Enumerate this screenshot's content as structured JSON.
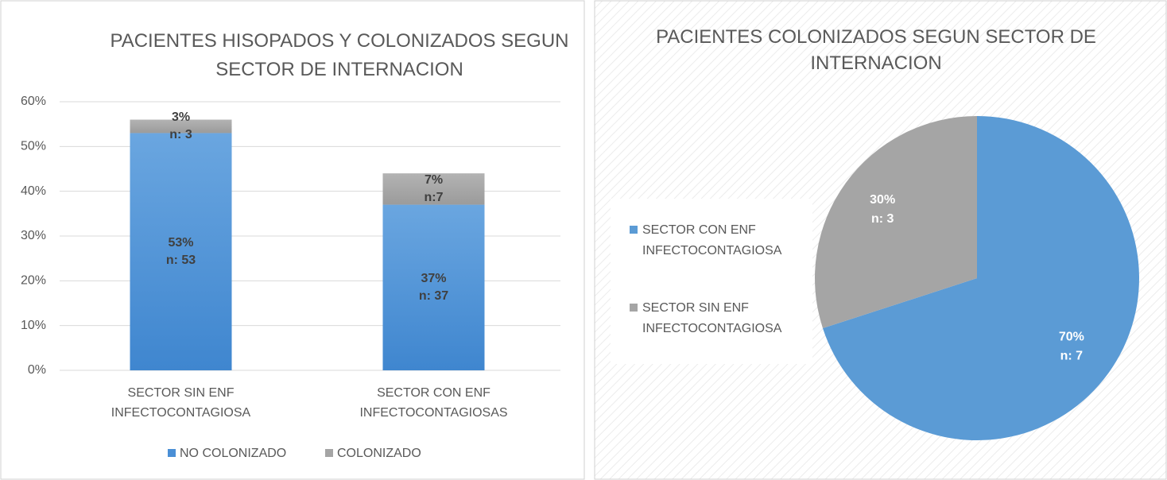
{
  "chart_data": [
    {
      "type": "stacked_bar",
      "title": "PACIENTES HISOPADOS Y COLONIZADOS SEGUN SECTOR DE INTERNACION",
      "categories": [
        "SECTOR SIN ENF INFECTOCONTAGIOSA",
        "SECTOR CON ENF INFECTOCONTAGIOSAS"
      ],
      "series": [
        {
          "name": "NO COLONIZADO",
          "color": "#4a8fd6",
          "values": [
            53,
            37
          ],
          "value_labels": [
            "53%",
            "37%"
          ],
          "count_labels": [
            "n: 53",
            "n: 37"
          ]
        },
        {
          "name": "COLONIZADO",
          "color": "#a5a5a5",
          "values": [
            3,
            7
          ],
          "value_labels": [
            "3%",
            "7%"
          ],
          "count_labels": [
            "n: 3",
            "n:7"
          ]
        }
      ],
      "ylim": [
        0,
        60
      ],
      "yticks": [
        {
          "value": 0,
          "label": "0%"
        },
        {
          "value": 10,
          "label": "10%"
        },
        {
          "value": 20,
          "label": "20%"
        },
        {
          "value": 30,
          "label": "30%"
        },
        {
          "value": 40,
          "label": "40%"
        },
        {
          "value": 50,
          "label": "50%"
        },
        {
          "value": 60,
          "label": "60%"
        }
      ],
      "grid": true,
      "legend": "bottom"
    },
    {
      "type": "pie",
      "title": "PACIENTES COLONIZADOS SEGUN SECTOR DE INTERNACION",
      "categories": [
        "SECTOR CON ENF INFECTOCONTAGIOSA",
        "SECTOR SIN ENF INFECTOCONTAGIOSA"
      ],
      "values": [
        70,
        30
      ],
      "value_labels": [
        "70%",
        "30%"
      ],
      "count_labels": [
        "n: 7",
        "n: 3"
      ],
      "colors": [
        "#5b9bd5",
        "#a5a5a5"
      ],
      "legend": "left"
    }
  ]
}
